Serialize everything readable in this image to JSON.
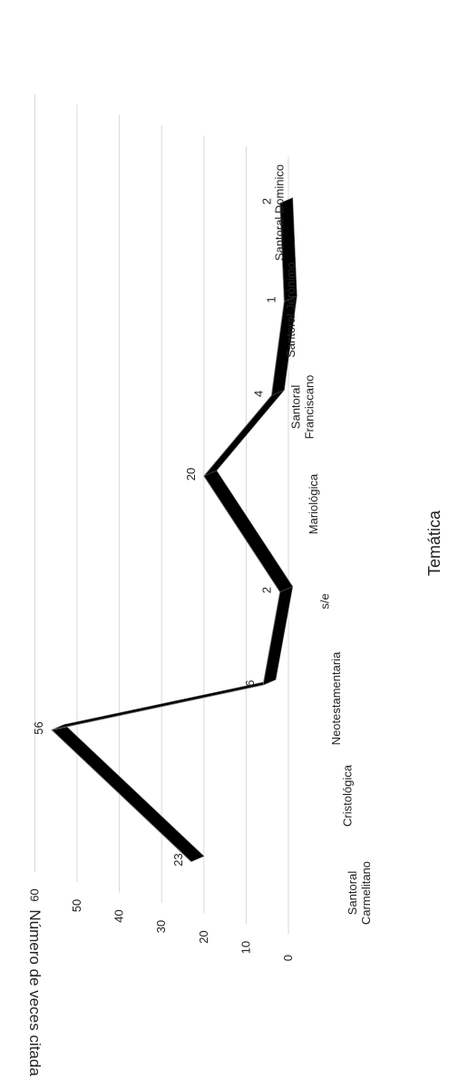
{
  "chart_data": {
    "type": "line",
    "style": "3d-ribbon",
    "orientation": "rotated-90-clockwise",
    "xlabel": "Temática",
    "ylabel": "Número de veces citada",
    "ylim": [
      0,
      60
    ],
    "y_ticks": [
      "0",
      "10",
      "20",
      "30",
      "40",
      "50",
      "60"
    ],
    "grid": true,
    "legend": "none",
    "categories": [
      "Santoral Carmelitano",
      "Cristológica",
      "Neotestamentaria",
      "s/e",
      "Mariológica",
      "Santoral Franciscano",
      "Santoral Jerónimo",
      "Santoral Dominico"
    ],
    "series": [
      {
        "values": [
          23,
          56,
          6,
          2,
          20,
          4,
          1,
          2
        ]
      }
    ],
    "data_labels": [
      "23",
      "56",
      "6",
      "2",
      "20",
      "4",
      "1",
      "2"
    ],
    "colors": {
      "ribbon": "#000000",
      "grid": "#d9d9d9",
      "text": "#222222"
    }
  }
}
